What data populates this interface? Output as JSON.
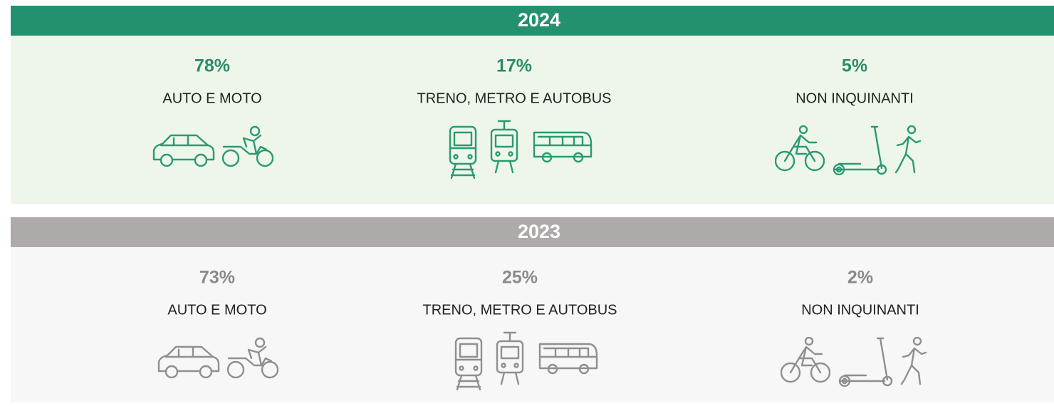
{
  "panels": [
    {
      "year": "2024",
      "items": [
        {
          "share": "78%",
          "label": "AUTO E MOTO"
        },
        {
          "share": "17%",
          "label": "TRENO, METRO E AUTOBUS"
        },
        {
          "share": "5%",
          "label": "NON INQUINANTI"
        }
      ]
    },
    {
      "year": "2023",
      "items": [
        {
          "share": "73%",
          "label": "AUTO E MOTO"
        },
        {
          "share": "25%",
          "label": "TRENO, METRO E AUTOBUS"
        },
        {
          "share": "2%",
          "label": "NON INQUINANTI"
        }
      ]
    }
  ]
}
